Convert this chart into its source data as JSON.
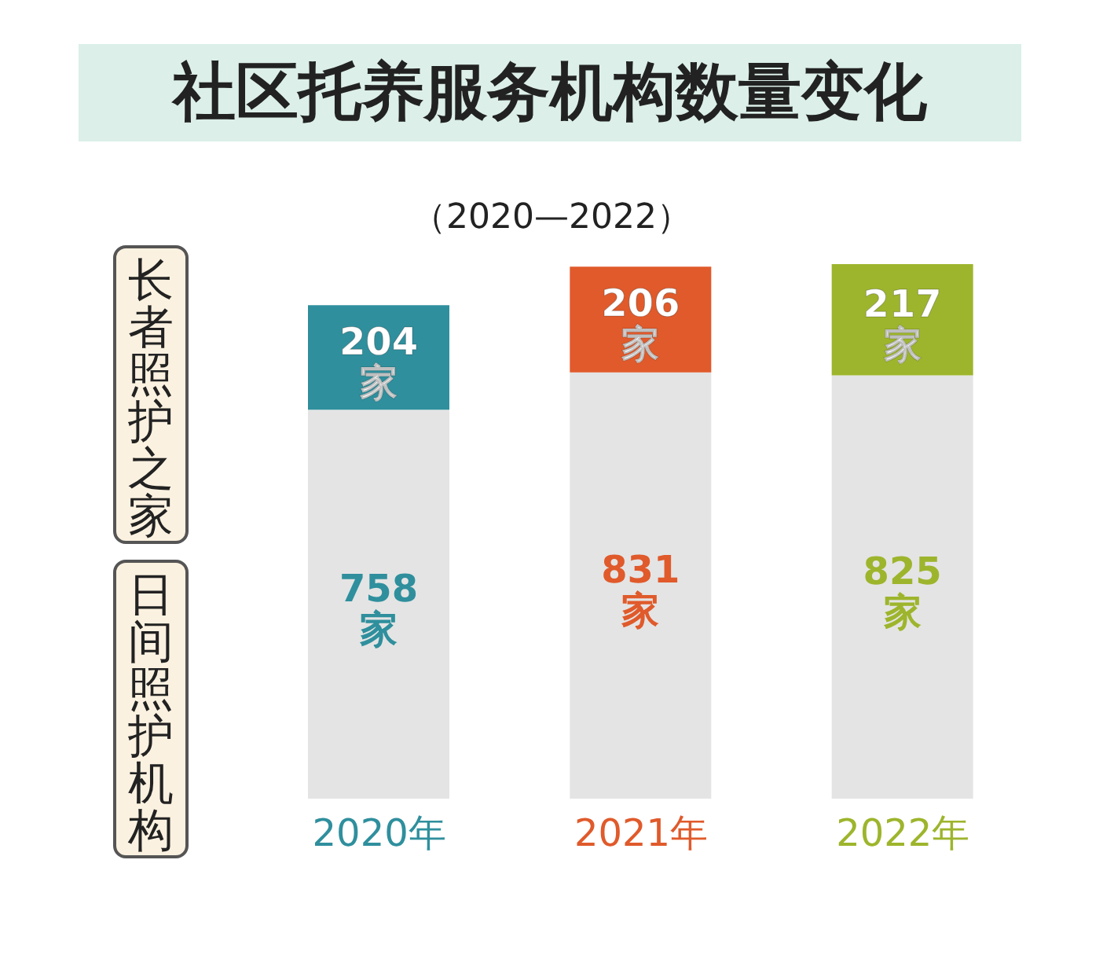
{
  "chart_data": {
    "type": "bar",
    "title": "社区托养服务机构数量变化",
    "subtitle": "（2020—2022）",
    "categories": [
      "2020年",
      "2021年",
      "2022年"
    ],
    "stacked": true,
    "series": [
      {
        "name": "日间照护机构",
        "color": "#e4e4e4",
        "values": [
          758,
          831,
          825
        ],
        "value_labels": [
          "758\n家",
          "831\n家",
          "825\n家"
        ]
      },
      {
        "name": "长者照护之家",
        "color": "#2f8f9d",
        "colors": [
          "#2f8f9d",
          "#e05a2b",
          "#9db52c"
        ],
        "values": [
          204,
          206,
          217
        ],
        "value_labels": [
          "204\n家",
          "206\n家",
          "217\n家"
        ]
      }
    ]
  }
}
